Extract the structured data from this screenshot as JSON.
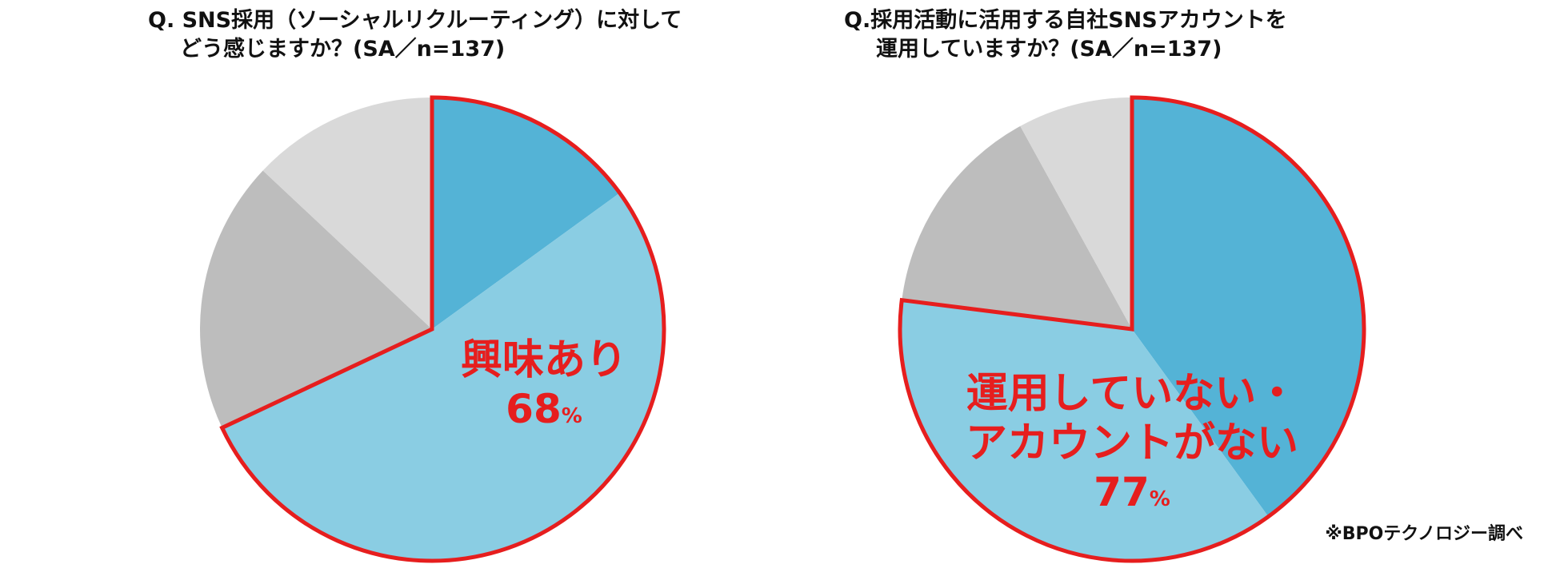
{
  "chart_data": [
    {
      "type": "pie",
      "title": "Q. SNS採用（ソーシャルリクルーティング）に対して\nどう感じますか？(SA／n=137)",
      "slices": [
        {
          "value": 15,
          "color": "#54b3d6"
        },
        {
          "value": 53,
          "color": "#8acde3"
        },
        {
          "value": 19,
          "color": "#bdbdbd"
        },
        {
          "value": 13,
          "color": "#d9d9d9"
        }
      ],
      "highlight": {
        "label": "興味あり",
        "value": "68",
        "unit": "%",
        "slices": [
          0,
          1
        ],
        "stroke": "#e61e1e"
      }
    },
    {
      "type": "pie",
      "title": "Q.採用活動に活用する自社SNSアカウントを\n運用していますか？(SA／n=137)",
      "slices": [
        {
          "value": 40,
          "color": "#54b3d6"
        },
        {
          "value": 37,
          "color": "#8acde3"
        },
        {
          "value": 15,
          "color": "#bdbdbd"
        },
        {
          "value": 8,
          "color": "#d9d9d9"
        }
      ],
      "highlight": {
        "label": "運用していない・\nアカウントがない",
        "value": "77",
        "unit": "%",
        "slices": [
          0,
          1
        ],
        "stroke": "#e61e1e"
      }
    }
  ],
  "left": {
    "title_line1": "Q. SNS採用（ソーシャルリクルーティング）に対して",
    "title_line2": "どう感じますか？(SA／n=137)",
    "label": "興味あり",
    "pct": "68",
    "pct_unit": "%"
  },
  "right": {
    "title_line1": "Q.採用活動に活用する自社SNSアカウントを",
    "title_line2": "運用していますか？(SA／n=137)",
    "label_line1": "運用していない・",
    "label_line2": "アカウントがない",
    "pct": "77",
    "pct_unit": "%"
  },
  "source_note": "※BPOテクノロジー調べ"
}
